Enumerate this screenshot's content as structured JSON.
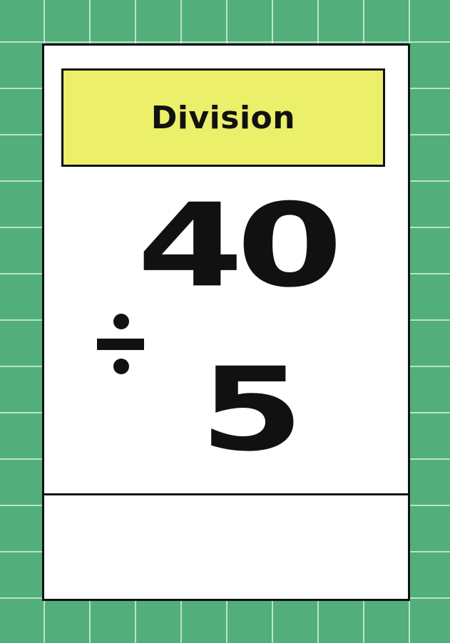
{
  "card": {
    "title": "Division",
    "dividend": "40",
    "divisor": "5",
    "operator_icon": "division-sign-icon",
    "answer": ""
  },
  "colors": {
    "background": "#52ae7a",
    "grid_lines": "#dcf5e1",
    "card": "#ffffff",
    "title_box": "#ecef6a",
    "ink": "#111111"
  }
}
